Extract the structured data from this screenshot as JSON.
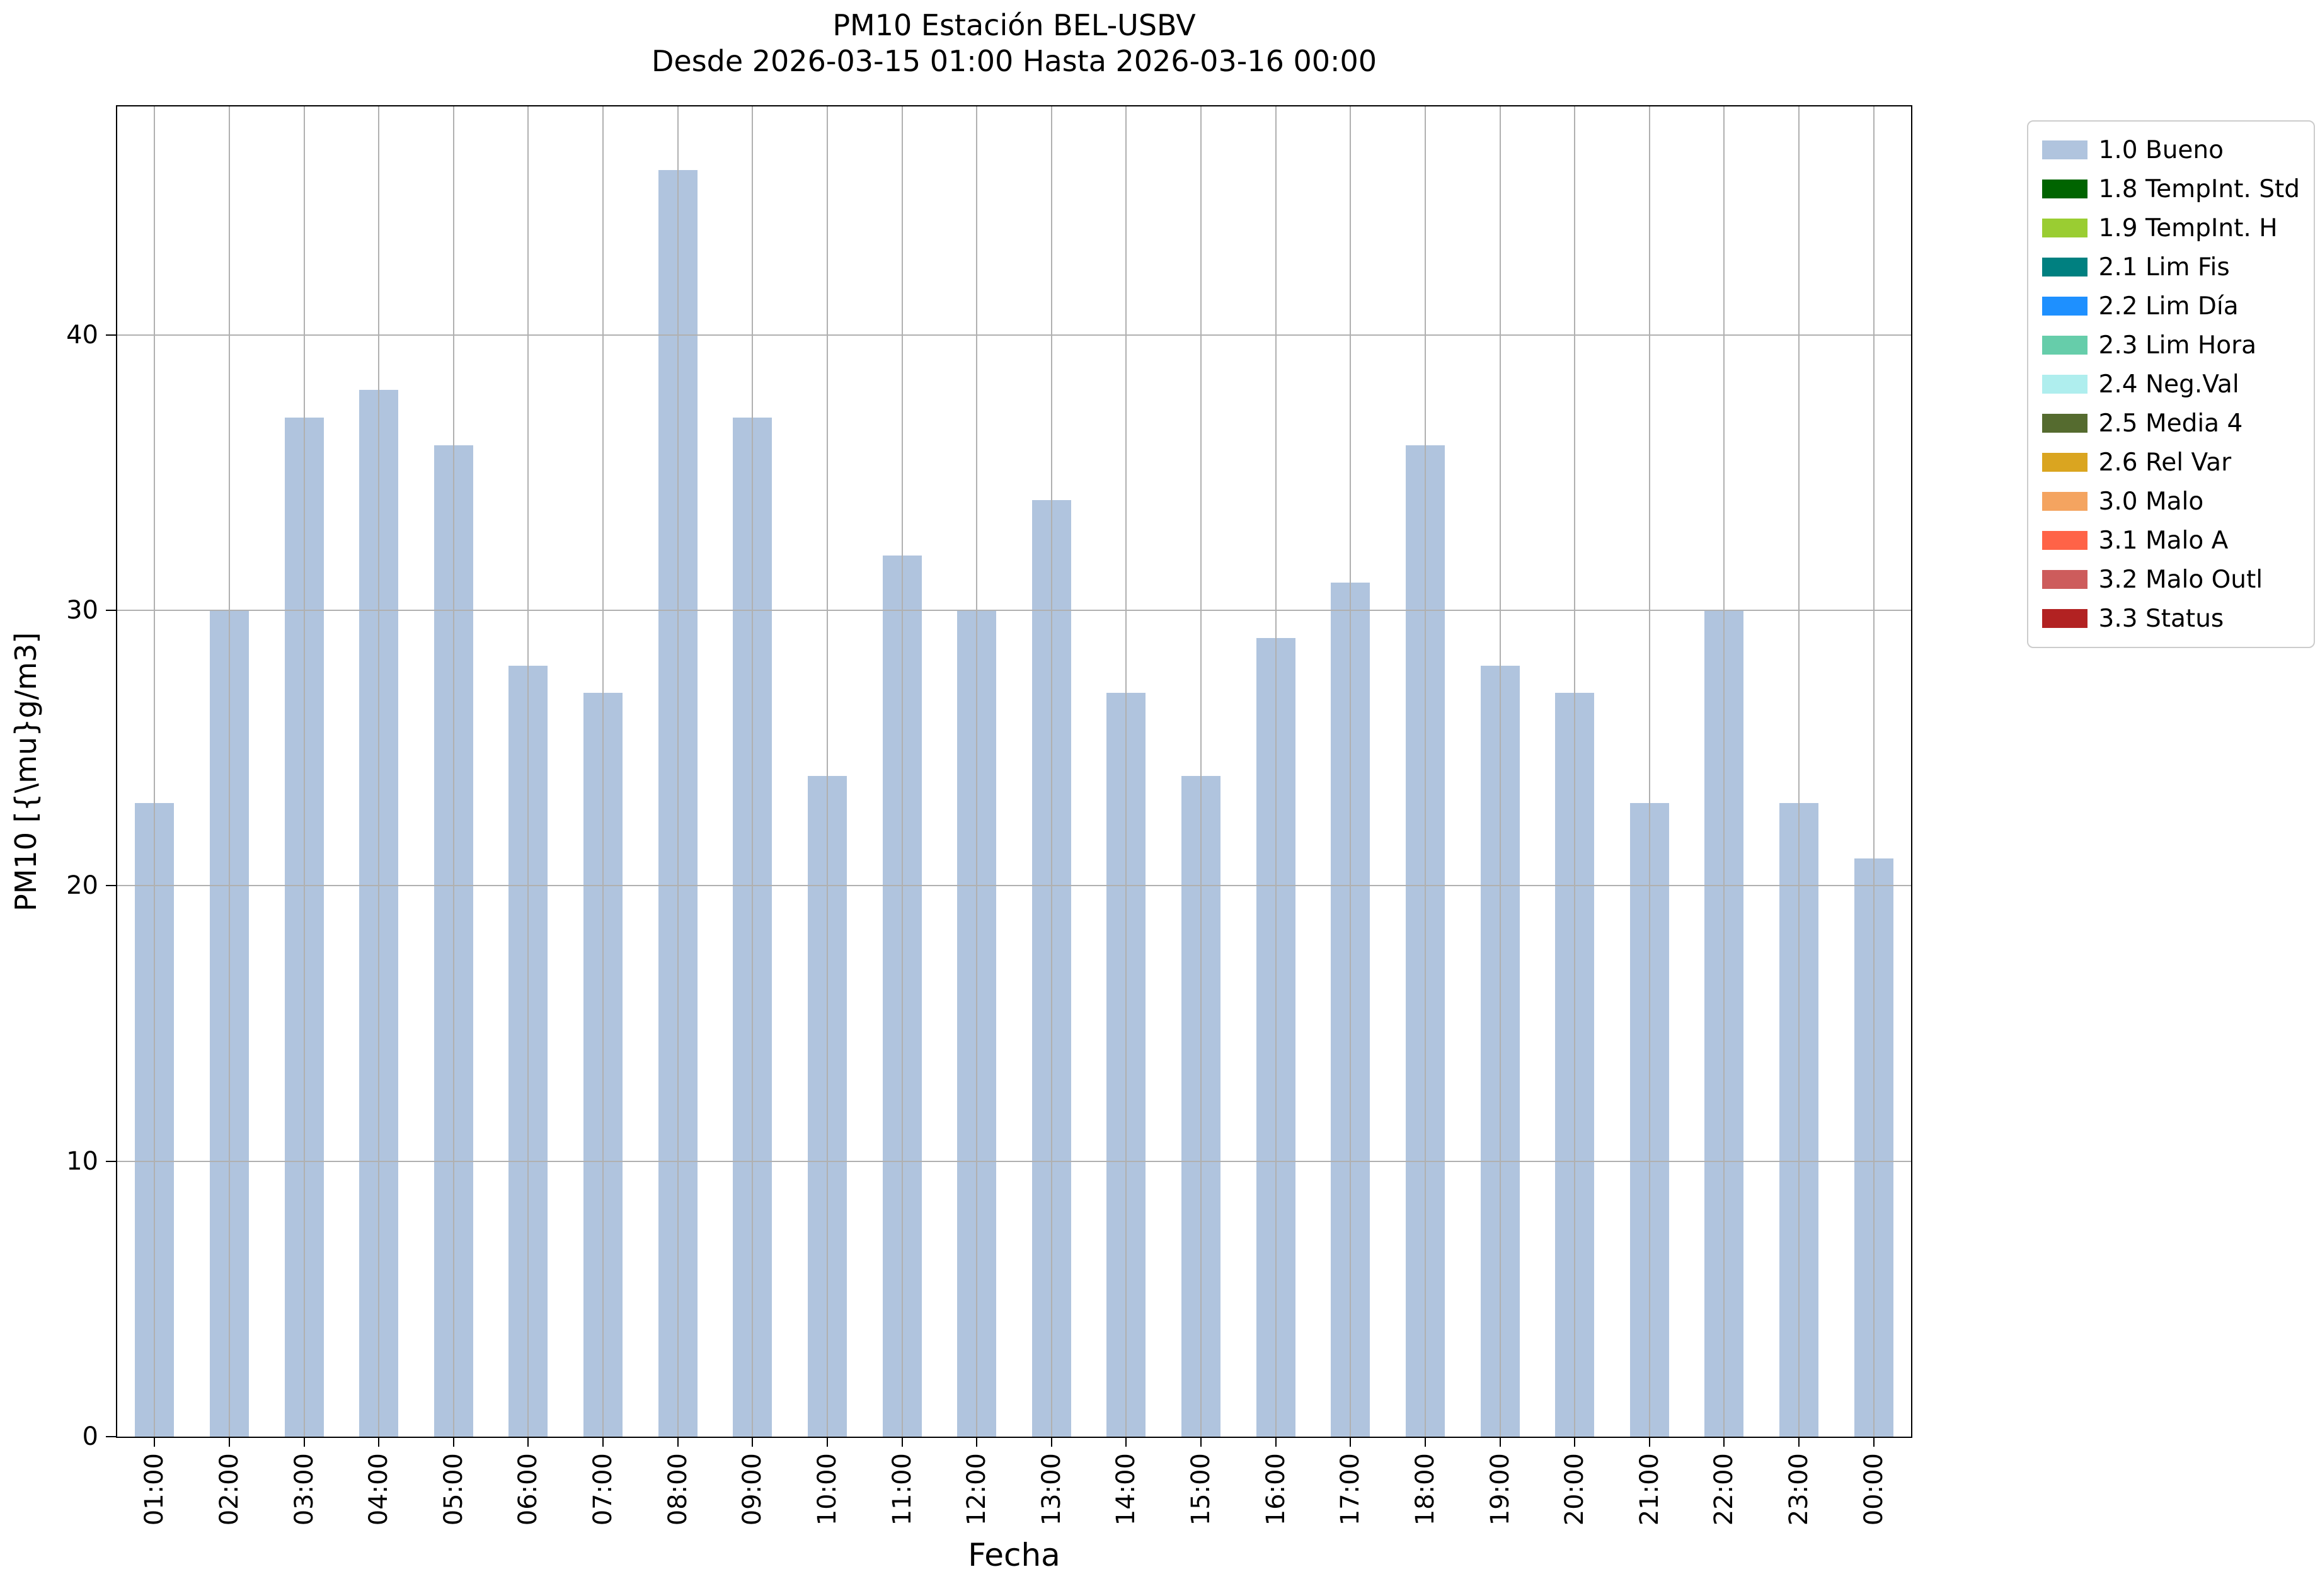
{
  "chart_data": {
    "type": "bar",
    "title": "PM10 Estación BEL-USBV",
    "subtitle": "Desde 2026-03-15 01:00 Hasta 2026-03-16 00:00",
    "xlabel": "Fecha",
    "ylabel": "PM10 [{\\mu}g/m3]",
    "categories": [
      "01:00",
      "02:00",
      "03:00",
      "04:00",
      "05:00",
      "06:00",
      "07:00",
      "08:00",
      "09:00",
      "10:00",
      "11:00",
      "12:00",
      "13:00",
      "14:00",
      "15:00",
      "16:00",
      "17:00",
      "18:00",
      "19:00",
      "20:00",
      "21:00",
      "22:00",
      "23:00",
      "00:00"
    ],
    "values": [
      23,
      30,
      37,
      38,
      36,
      28,
      27,
      46,
      37,
      24,
      32,
      30,
      34,
      27,
      24,
      29,
      31,
      36,
      28,
      27,
      23,
      30,
      23,
      21
    ],
    "yticks": [
      0,
      10,
      20,
      30,
      40
    ],
    "ylim": [
      0,
      48.3
    ],
    "grid": true,
    "grid_color": "#b0b0b0",
    "bar_color": "#b0c4de",
    "legend_position": "outside-top-right",
    "legend": [
      {
        "label": "1.0 Bueno",
        "color": "#b0c4de"
      },
      {
        "label": "1.8 TempInt. Std",
        "color": "#006400"
      },
      {
        "label": "1.9 TempInt. H",
        "color": "#9acd32"
      },
      {
        "label": "2.1 Lim Fis",
        "color": "#008080"
      },
      {
        "label": "2.2 Lim Día",
        "color": "#1e90ff"
      },
      {
        "label": "2.3 Lim Hora",
        "color": "#66cdaa"
      },
      {
        "label": "2.4 Neg.Val",
        "color": "#afeeee"
      },
      {
        "label": "2.5 Media 4",
        "color": "#556b2f"
      },
      {
        "label": "2.6 Rel Var",
        "color": "#daa520"
      },
      {
        "label": "3.0 Malo",
        "color": "#f4a460"
      },
      {
        "label": "3.1 Malo A",
        "color": "#ff6347"
      },
      {
        "label": "3.2 Malo Outl",
        "color": "#cd5c5c"
      },
      {
        "label": "3.3 Status",
        "color": "#b22222"
      }
    ]
  }
}
